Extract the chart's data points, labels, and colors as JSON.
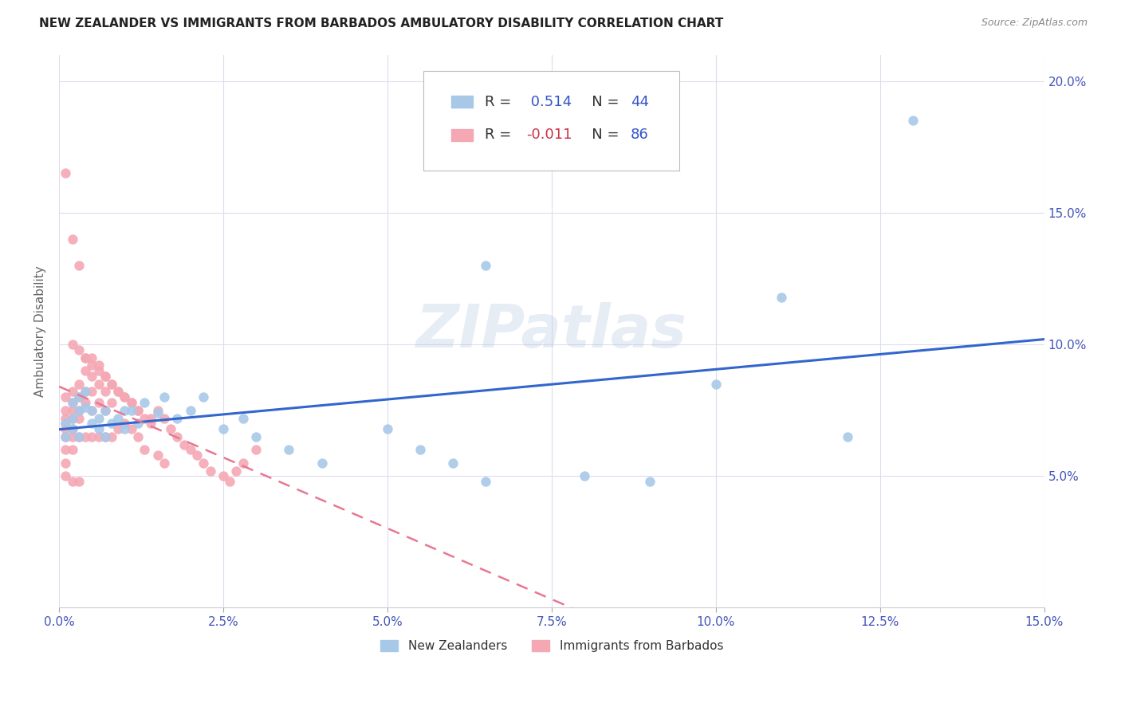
{
  "title": "NEW ZEALANDER VS IMMIGRANTS FROM BARBADOS AMBULATORY DISABILITY CORRELATION CHART",
  "source": "Source: ZipAtlas.com",
  "ylabel": "Ambulatory Disability",
  "xlim": [
    0.0,
    0.15
  ],
  "ylim": [
    0.0,
    0.21
  ],
  "xticks": [
    0.0,
    0.025,
    0.05,
    0.075,
    0.1,
    0.125,
    0.15
  ],
  "xtick_labels": [
    "0.0%",
    "2.5%",
    "5.0%",
    "7.5%",
    "10.0%",
    "12.5%",
    "15.0%"
  ],
  "yticks": [
    0.05,
    0.1,
    0.15,
    0.2
  ],
  "ytick_labels": [
    "5.0%",
    "10.0%",
    "15.0%",
    "20.0%"
  ],
  "background_color": "#ffffff",
  "blue_color": "#a8c8e8",
  "pink_color": "#f4a8b4",
  "blue_line_color": "#3366cc",
  "pink_line_color": "#e87890",
  "R_blue": 0.514,
  "N_blue": 44,
  "R_pink": -0.011,
  "N_pink": 86,
  "watermark": "ZIPatlas",
  "legend_labels": [
    "New Zealanders",
    "Immigrants from Barbados"
  ],
  "grid_color": "#ddddee",
  "tick_color": "#4455bb",
  "blue_x": [
    0.001,
    0.001,
    0.002,
    0.002,
    0.002,
    0.003,
    0.003,
    0.003,
    0.004,
    0.004,
    0.005,
    0.005,
    0.006,
    0.006,
    0.007,
    0.007,
    0.008,
    0.009,
    0.01,
    0.01,
    0.011,
    0.012,
    0.013,
    0.015,
    0.016,
    0.018,
    0.02,
    0.022,
    0.025,
    0.028,
    0.03,
    0.035,
    0.04,
    0.05,
    0.055,
    0.06,
    0.065,
    0.08,
    0.09,
    0.1,
    0.11,
    0.12,
    0.065,
    0.13
  ],
  "blue_y": [
    0.065,
    0.07,
    0.072,
    0.078,
    0.068,
    0.075,
    0.08,
    0.065,
    0.076,
    0.082,
    0.07,
    0.075,
    0.072,
    0.068,
    0.075,
    0.065,
    0.07,
    0.072,
    0.075,
    0.068,
    0.075,
    0.07,
    0.078,
    0.074,
    0.08,
    0.072,
    0.075,
    0.08,
    0.068,
    0.072,
    0.065,
    0.06,
    0.055,
    0.068,
    0.06,
    0.055,
    0.048,
    0.05,
    0.048,
    0.085,
    0.118,
    0.065,
    0.13,
    0.185
  ],
  "pink_x": [
    0.001,
    0.001,
    0.001,
    0.001,
    0.001,
    0.001,
    0.001,
    0.001,
    0.001,
    0.001,
    0.002,
    0.002,
    0.002,
    0.002,
    0.002,
    0.002,
    0.002,
    0.002,
    0.002,
    0.003,
    0.003,
    0.003,
    0.003,
    0.003,
    0.003,
    0.003,
    0.004,
    0.004,
    0.004,
    0.004,
    0.004,
    0.005,
    0.005,
    0.005,
    0.005,
    0.005,
    0.006,
    0.006,
    0.006,
    0.006,
    0.007,
    0.007,
    0.007,
    0.007,
    0.008,
    0.008,
    0.008,
    0.009,
    0.009,
    0.01,
    0.01,
    0.011,
    0.011,
    0.012,
    0.012,
    0.013,
    0.013,
    0.014,
    0.015,
    0.015,
    0.016,
    0.016,
    0.017,
    0.018,
    0.019,
    0.02,
    0.021,
    0.022,
    0.023,
    0.025,
    0.026,
    0.027,
    0.028,
    0.03,
    0.002,
    0.003,
    0.004,
    0.005,
    0.006,
    0.007,
    0.008,
    0.009,
    0.01,
    0.011,
    0.012,
    0.014
  ],
  "pink_y": [
    0.165,
    0.08,
    0.075,
    0.072,
    0.07,
    0.068,
    0.065,
    0.06,
    0.055,
    0.05,
    0.14,
    0.082,
    0.078,
    0.075,
    0.072,
    0.068,
    0.065,
    0.06,
    0.048,
    0.13,
    0.085,
    0.08,
    0.075,
    0.072,
    0.065,
    0.048,
    0.095,
    0.09,
    0.082,
    0.078,
    0.065,
    0.095,
    0.088,
    0.082,
    0.075,
    0.065,
    0.092,
    0.085,
    0.078,
    0.065,
    0.088,
    0.082,
    0.075,
    0.065,
    0.085,
    0.078,
    0.065,
    0.082,
    0.068,
    0.08,
    0.07,
    0.078,
    0.068,
    0.075,
    0.065,
    0.072,
    0.06,
    0.07,
    0.075,
    0.058,
    0.072,
    0.055,
    0.068,
    0.065,
    0.062,
    0.06,
    0.058,
    0.055,
    0.052,
    0.05,
    0.048,
    0.052,
    0.055,
    0.06,
    0.1,
    0.098,
    0.095,
    0.092,
    0.09,
    0.088,
    0.085,
    0.082,
    0.08,
    0.078,
    0.075,
    0.072
  ]
}
